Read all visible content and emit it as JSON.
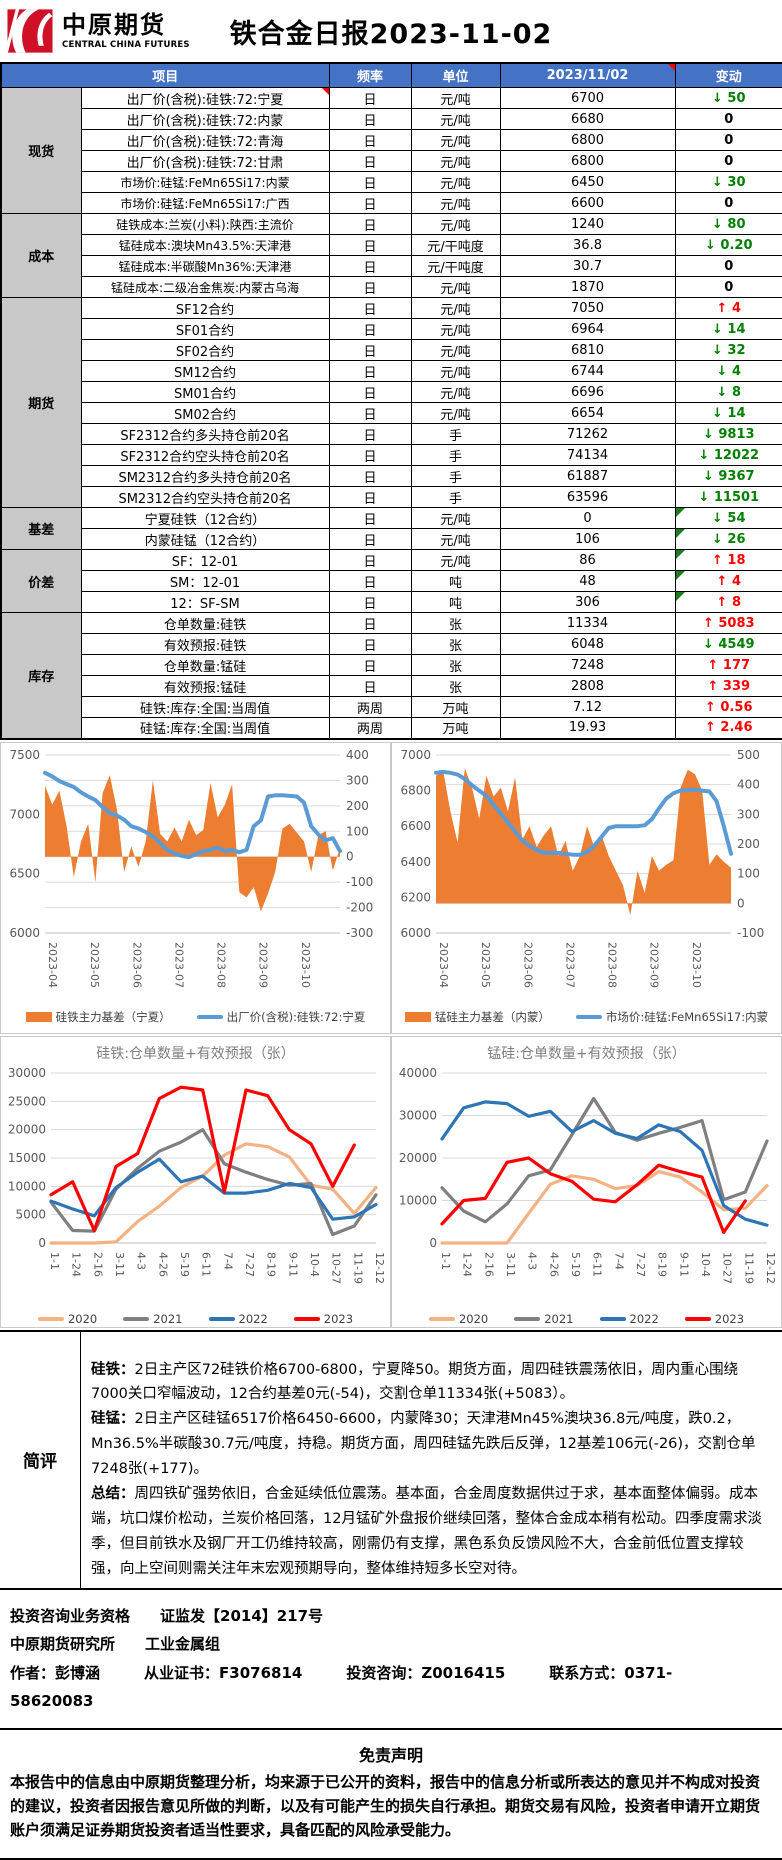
{
  "meta": {
    "title": "铁合金日报2023-11-02",
    "logo_cn": "中原期货",
    "logo_en": "CENTRAL CHINA FUTURES"
  },
  "colors": {
    "header_bg": "#4472C4",
    "group_bg": "#C8C8C8",
    "up": "#FF0000",
    "down": "#008000",
    "logo_red": "#CE1126",
    "area_orange": "#ED7D31",
    "line_blue": "#5B9BD5"
  },
  "arrows": {
    "up": "↑",
    "down": "↓"
  },
  "table": {
    "headers": {
      "item": "项目",
      "freq": "频率",
      "unit": "单位",
      "date": "2023/11/02",
      "change": "变动"
    },
    "groups": [
      {
        "name": "现货",
        "rows": [
          {
            "item": "出厂价(含税):硅铁:72:宁夏",
            "freq": "日",
            "unit": "元/吨",
            "value": "6700",
            "change": "50",
            "dir": "down",
            "note": true
          },
          {
            "item": "出厂价(含税):硅铁:72:内蒙",
            "freq": "日",
            "unit": "元/吨",
            "value": "6680",
            "change": "0",
            "dir": "flat"
          },
          {
            "item": "出厂价(含税):硅铁:72:青海",
            "freq": "日",
            "unit": "元/吨",
            "value": "6800",
            "change": "0",
            "dir": "flat"
          },
          {
            "item": "出厂价(含税):硅铁:72:甘肃",
            "freq": "日",
            "unit": "元/吨",
            "value": "6800",
            "change": "0",
            "dir": "flat"
          },
          {
            "item": "市场价:硅锰:FeMn65Si17:内蒙",
            "freq": "日",
            "unit": "元/吨",
            "value": "6450",
            "change": "30",
            "dir": "down"
          },
          {
            "item": "市场价:硅锰:FeMn65Si17:广西",
            "freq": "日",
            "unit": "元/吨",
            "value": "6600",
            "change": "0",
            "dir": "flat"
          }
        ]
      },
      {
        "name": "成本",
        "rows": [
          {
            "item": "硅铁成本:兰炭(小料):陕西:主流价",
            "freq": "日",
            "unit": "元/吨",
            "value": "1240",
            "change": "80",
            "dir": "down"
          },
          {
            "item": "锰硅成本:澳块Mn43.5%:天津港",
            "freq": "日",
            "unit": "元/干吨度",
            "value": "36.8",
            "change": "0.20",
            "dir": "down"
          },
          {
            "item": "锰硅成本:半碳酸Mn36%:天津港",
            "freq": "日",
            "unit": "元/干吨度",
            "value": "30.7",
            "change": "0",
            "dir": "flat"
          },
          {
            "item": "锰硅成本:二级冶金焦炭:内蒙古乌海",
            "freq": "日",
            "unit": "元/吨",
            "value": "1870",
            "change": "0",
            "dir": "flat"
          }
        ]
      },
      {
        "name": "期货",
        "rows": [
          {
            "item": "SF12合约",
            "freq": "日",
            "unit": "元/吨",
            "value": "7050",
            "change": "4",
            "dir": "up"
          },
          {
            "item": "SF01合约",
            "freq": "日",
            "unit": "元/吨",
            "value": "6964",
            "change": "14",
            "dir": "down"
          },
          {
            "item": "SF02合约",
            "freq": "日",
            "unit": "元/吨",
            "value": "6810",
            "change": "32",
            "dir": "down"
          },
          {
            "item": "SM12合约",
            "freq": "日",
            "unit": "元/吨",
            "value": "6744",
            "change": "4",
            "dir": "down"
          },
          {
            "item": "SM01合约",
            "freq": "日",
            "unit": "元/吨",
            "value": "6696",
            "change": "8",
            "dir": "down"
          },
          {
            "item": "SM02合约",
            "freq": "日",
            "unit": "元/吨",
            "value": "6654",
            "change": "14",
            "dir": "down"
          },
          {
            "item": "SF2312合约多头持仓前20名",
            "freq": "日",
            "unit": "手",
            "value": "71262",
            "change": "9813",
            "dir": "down"
          },
          {
            "item": "SF2312合约空头持仓前20名",
            "freq": "日",
            "unit": "手",
            "value": "74134",
            "change": "12022",
            "dir": "down"
          },
          {
            "item": "SM2312合约多头持仓前20名",
            "freq": "日",
            "unit": "手",
            "value": "61887",
            "change": "9367",
            "dir": "down"
          },
          {
            "item": "SM2312合约空头持仓前20名",
            "freq": "日",
            "unit": "手",
            "value": "63596",
            "change": "11501",
            "dir": "down"
          }
        ]
      },
      {
        "name": "基差",
        "rows": [
          {
            "item": "宁夏硅铁（12合约）",
            "freq": "日",
            "unit": "元/吨",
            "value": "0",
            "change": "54",
            "dir": "down",
            "corner": true
          },
          {
            "item": "内蒙硅锰（12合约）",
            "freq": "日",
            "unit": "元/吨",
            "value": "106",
            "change": "26",
            "dir": "down",
            "corner": true
          }
        ]
      },
      {
        "name": "价差",
        "rows": [
          {
            "item": "SF：12-01",
            "freq": "日",
            "unit": "元/吨",
            "value": "86",
            "change": "18",
            "dir": "up",
            "corner": true
          },
          {
            "item": "SM：12-01",
            "freq": "日",
            "unit": "吨",
            "value": "48",
            "change": "4",
            "dir": "up",
            "corner": true
          },
          {
            "item": "12：SF-SM",
            "freq": "日",
            "unit": "吨",
            "value": "306",
            "change": "8",
            "dir": "up",
            "corner": true
          }
        ]
      },
      {
        "name": "库存",
        "rows": [
          {
            "item": "仓单数量:硅铁",
            "freq": "日",
            "unit": "张",
            "value": "11334",
            "change": "5083",
            "dir": "up"
          },
          {
            "item": "有效预报:硅铁",
            "freq": "日",
            "unit": "张",
            "value": "6048",
            "change": "4549",
            "dir": "down"
          },
          {
            "item": "仓单数量:锰硅",
            "freq": "日",
            "unit": "张",
            "value": "7248",
            "change": "177",
            "dir": "up"
          },
          {
            "item": "有效预报:锰硅",
            "freq": "日",
            "unit": "张",
            "value": "2808",
            "change": "339",
            "dir": "up"
          },
          {
            "item": "硅铁:库存:全国:当周值",
            "freq": "两周",
            "unit": "万吨",
            "value": "7.12",
            "change": "0.56",
            "dir": "up"
          },
          {
            "item": "硅锰:库存:全国:当周值",
            "freq": "两周",
            "unit": "万吨",
            "value": "19.93",
            "change": "2.46",
            "dir": "up"
          }
        ]
      }
    ]
  },
  "chart_data": [
    {
      "type": "combo-area-line",
      "title": "",
      "x_labels": [
        "2023-04",
        "2023-05",
        "2023-06",
        "2023-07",
        "2023-08",
        "2023-09",
        "2023-10"
      ],
      "left_axis": {
        "min": 6000,
        "max": 7500,
        "ticks": [
          7500,
          7000,
          6500,
          6000
        ]
      },
      "right_axis": {
        "min": -300,
        "max": 400,
        "ticks": [
          400,
          300,
          200,
          100,
          0,
          -100,
          -200,
          -300
        ]
      },
      "series": [
        {
          "name": "硅铁主力基差（宁夏）",
          "type": "area",
          "axis": "right",
          "color": "#ED7D31",
          "values": [
            280,
            205,
            260,
            120,
            -80,
            60,
            130,
            -100,
            250,
            320,
            185,
            -60,
            40,
            -40,
            60,
            300,
            90,
            60,
            115,
            60,
            145,
            85,
            105,
            290,
            155,
            205,
            285,
            -140,
            -160,
            -120,
            -215,
            -145,
            -60,
            110,
            130,
            95,
            60,
            -60,
            85,
            100,
            -55,
            35
          ]
        },
        {
          "name": "出厂价(含税):硅铁:72:宁夏",
          "type": "line",
          "axis": "left",
          "color": "#5B9BD5",
          "width": 4,
          "values": [
            7350,
            7320,
            7280,
            7255,
            7230,
            7185,
            7150,
            7120,
            7060,
            7010,
            6990,
            6955,
            6900,
            6880,
            6850,
            6815,
            6760,
            6700,
            6670,
            6650,
            6640,
            6665,
            6690,
            6700,
            6720,
            6690,
            6700,
            6680,
            6700,
            6900,
            6950,
            7150,
            7160,
            7160,
            7155,
            7150,
            7100,
            6900,
            6830,
            6780,
            6800,
            6690
          ]
        }
      ]
    },
    {
      "type": "combo-area-line",
      "title": "",
      "x_labels": [
        "2023-04",
        "2023-05",
        "2023-06",
        "2023-07",
        "2023-08",
        "2023-09",
        "2023-10"
      ],
      "left_axis": {
        "min": 6000,
        "max": 7000,
        "ticks": [
          7000,
          6800,
          6600,
          6400,
          6200,
          6000
        ]
      },
      "right_axis": {
        "min": -100,
        "max": 500,
        "ticks": [
          500,
          400,
          300,
          200,
          100,
          0,
          -100
        ]
      },
      "series": [
        {
          "name": "锰硅主力基差（内蒙）",
          "type": "area",
          "axis": "right",
          "color": "#ED7D31",
          "values": [
            430,
            445,
            310,
            205,
            455,
            390,
            285,
            430,
            360,
            390,
            310,
            425,
            215,
            260,
            190,
            230,
            260,
            160,
            210,
            110,
            160,
            260,
            190,
            230,
            160,
            110,
            60,
            -40,
            110,
            35,
            160,
            110,
            130,
            145,
            390,
            450,
            435,
            380,
            130,
            165,
            140,
            120
          ]
        },
        {
          "name": "市场价:硅锰:FeMn65Si17:内蒙",
          "type": "line",
          "axis": "left",
          "color": "#5B9BD5",
          "width": 4,
          "values": [
            6900,
            6905,
            6900,
            6890,
            6865,
            6830,
            6800,
            6770,
            6720,
            6670,
            6620,
            6570,
            6520,
            6490,
            6465,
            6450,
            6450,
            6450,
            6445,
            6440,
            6440,
            6455,
            6490,
            6540,
            6590,
            6600,
            6600,
            6600,
            6600,
            6605,
            6640,
            6700,
            6755,
            6785,
            6800,
            6805,
            6805,
            6800,
            6795,
            6740,
            6600,
            6445
          ]
        }
      ]
    },
    {
      "type": "line",
      "title": "硅铁:仓单数量+有效预报（张）",
      "x_labels": [
        "1-1",
        "1-24",
        "2-16",
        "3-11",
        "4-3",
        "4-26",
        "5-19",
        "6-11",
        "7-4",
        "7-27",
        "8-19",
        "9-11",
        "10-4",
        "10-27",
        "11-19",
        "12-12"
      ],
      "y_axis": {
        "min": 0,
        "max": 30000,
        "ticks": [
          30000,
          25000,
          20000,
          15000,
          10000,
          5000,
          0
        ]
      },
      "series": [
        {
          "name": "2020",
          "type": "line",
          "axis": "left",
          "color": "#F4B183",
          "width": 3.2,
          "values": [
            0,
            0,
            0,
            200,
            3800,
            6500,
            9800,
            11800,
            15500,
            17500,
            17000,
            15200,
            10200,
            9500,
            5200,
            9800
          ]
        },
        {
          "name": "2021",
          "type": "line",
          "axis": "left",
          "color": "#7F7F7F",
          "width": 3.2,
          "values": [
            7200,
            2200,
            2100,
            9500,
            13200,
            16200,
            17800,
            20000,
            14000,
            12500,
            11200,
            10200,
            10500,
            1500,
            3000,
            8500
          ]
        },
        {
          "name": "2022",
          "type": "line",
          "axis": "left",
          "color": "#2E75B6",
          "width": 3.2,
          "values": [
            7400,
            6000,
            4800,
            9800,
            12500,
            14800,
            10800,
            11800,
            8800,
            8800,
            9300,
            10500,
            9800,
            4200,
            4600,
            6800
          ]
        },
        {
          "name": "2023",
          "type": "line",
          "axis": "left",
          "color": "#FF0000",
          "width": 3.2,
          "values": [
            8500,
            10800,
            2200,
            13500,
            15800,
            25500,
            27500,
            27000,
            9000,
            27000,
            26000,
            20000,
            17500,
            10000,
            17300,
            null
          ]
        }
      ]
    },
    {
      "type": "line",
      "title": "锰硅:仓单数量+有效预报（张）",
      "x_labels": [
        "1-1",
        "1-24",
        "2-16",
        "3-11",
        "4-3",
        "4-26",
        "5-19",
        "6-11",
        "7-4",
        "7-27",
        "8-19",
        "9-11",
        "10-4",
        "10-27",
        "11-19",
        "12-12"
      ],
      "y_axis": {
        "min": 0,
        "max": 40000,
        "ticks": [
          40000,
          30000,
          20000,
          10000,
          0
        ]
      },
      "series": [
        {
          "name": "2020",
          "type": "line",
          "axis": "left",
          "color": "#F4B183",
          "width": 3.2,
          "values": [
            0,
            0,
            0,
            0,
            7000,
            13800,
            15800,
            15000,
            12800,
            13500,
            16800,
            15500,
            12000,
            7800,
            8200,
            13500
          ]
        },
        {
          "name": "2021",
          "type": "line",
          "axis": "left",
          "color": "#7F7F7F",
          "width": 3.2,
          "values": [
            13000,
            7500,
            5000,
            9200,
            15800,
            17200,
            25500,
            34000,
            26000,
            24200,
            25800,
            27200,
            28800,
            10200,
            12000,
            24000
          ]
        },
        {
          "name": "2022",
          "type": "line",
          "axis": "left",
          "color": "#2E75B6",
          "width": 3.2,
          "values": [
            24500,
            31800,
            33200,
            32800,
            29800,
            31000,
            26200,
            28800,
            25800,
            24600,
            27800,
            26200,
            21800,
            8800,
            5600,
            4200
          ]
        },
        {
          "name": "2023",
          "type": "line",
          "axis": "left",
          "color": "#FF0000",
          "width": 3.2,
          "values": [
            4500,
            10000,
            10500,
            19000,
            20000,
            16300,
            14500,
            10300,
            9700,
            13700,
            18300,
            16800,
            15500,
            2500,
            9900,
            null
          ]
        }
      ]
    }
  ],
  "commentary": {
    "label": "简评",
    "paragraphs": [
      {
        "head": "硅铁：",
        "text": "2日主产区72硅铁价格6700-6800，宁夏降50。期货方面，周四硅铁震荡依旧，周内重心围绕7000关口窄幅波动，12合约基差0元(-54)，交割仓单11334张(+5083）。"
      },
      {
        "head": "硅锰：",
        "text": "2日主产区硅锰6517价格6450-6600，内蒙降30；天津港Mn45%澳块36.8元/吨度，跌0.2，Mn36.5%半碳酸30.7元/吨度，持稳。期货方面，周四硅锰先跌后反弹，12基差106元(-26)，交割仓单7248张(+177)。"
      },
      {
        "head": "总结：",
        "text": "周四铁矿强势依旧，合金延续低位震荡。基本面，合金周度数据供过于求，基本面整体偏弱。成本端，坑口煤价松动，兰炭价格回落，12月锰矿外盘报价继续回落，整体合金成本稍有松动。四季度需求淡季，但目前铁水及钢厂开工仍维持较高，刚需仍有支撑，黑色系负反馈风险不大，合金前低位置支撑较强，向上空间则需关注年末宏观预期导向，整体维持短多长空对待。"
      }
    ]
  },
  "footer": {
    "line1": "投资咨询业务资格　　证监发【2014】217号",
    "line2": "中原期货研究所　　工业金属组",
    "author_parts": [
      "作者：彭博涵",
      "从业证书：F3076814",
      "投资咨询：Z0016415",
      "联系方式：0371-58620083"
    ]
  },
  "disclaimer": {
    "title": "免责声明",
    "text": "本报告中的信息由中原期货整理分析，均来源于已公开的资料，报告中的信息分析或所表达的意见并不构成对投资的建议，投资者因报告意见所做的判断，以及有可能产生的损失自行承担。期货交易有风险，投资者申请开立期货账户须满足证券期货投资者适当性要求，具备匹配的风险承受能力。"
  }
}
